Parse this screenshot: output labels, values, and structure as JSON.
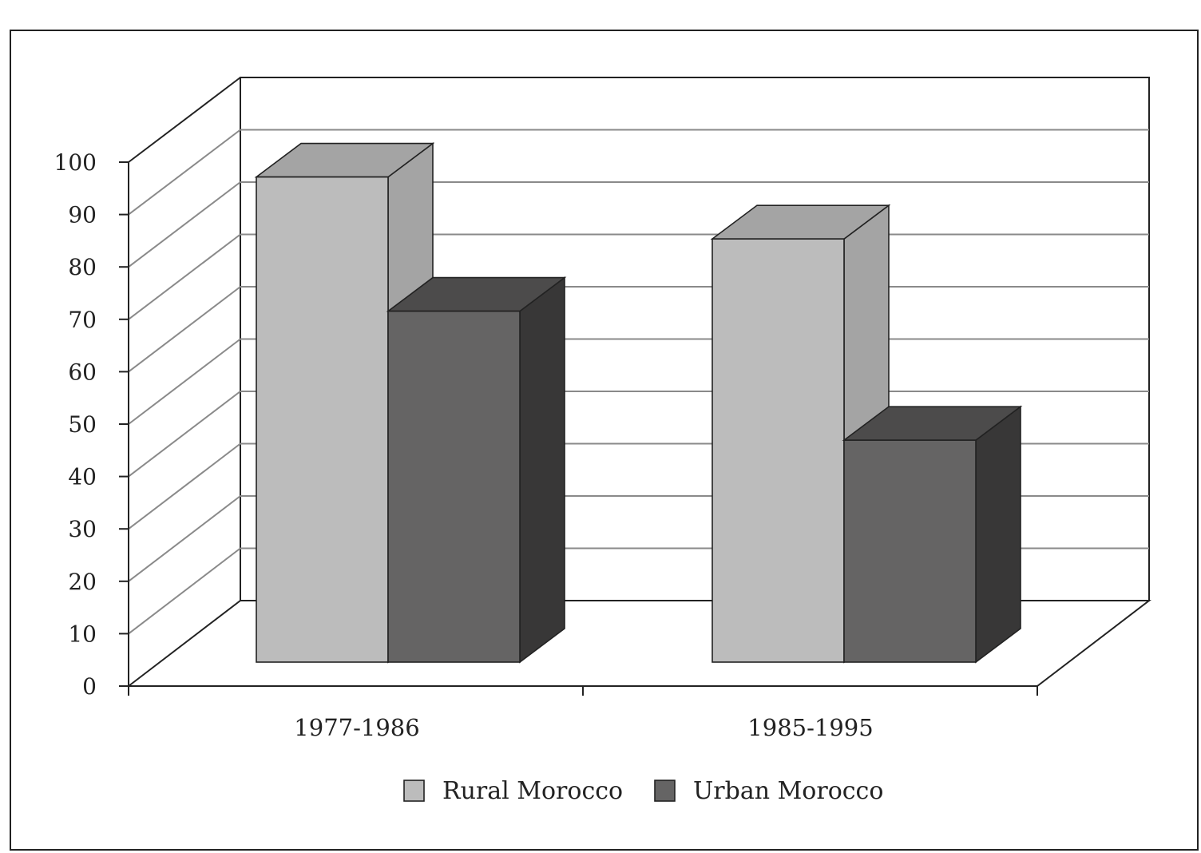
{
  "chart_data": {
    "type": "bar",
    "categories": [
      "1977-1986",
      "1985-1995"
    ],
    "series": [
      {
        "name": "Rural Morocco",
        "values": [
          94,
          82
        ],
        "color": "#bcbcbc"
      },
      {
        "name": "Urban Morocco",
        "values": [
          68,
          43
        ],
        "color": "#656464"
      }
    ],
    "title": "",
    "xlabel": "",
    "ylabel": "",
    "ylim": [
      0,
      100
    ],
    "yticks": [
      "0",
      "10",
      "20",
      "30",
      "40",
      "50",
      "60",
      "70",
      "80",
      "90",
      "100"
    ],
    "grid": true,
    "legend_position": "bottom",
    "style": "3d"
  }
}
